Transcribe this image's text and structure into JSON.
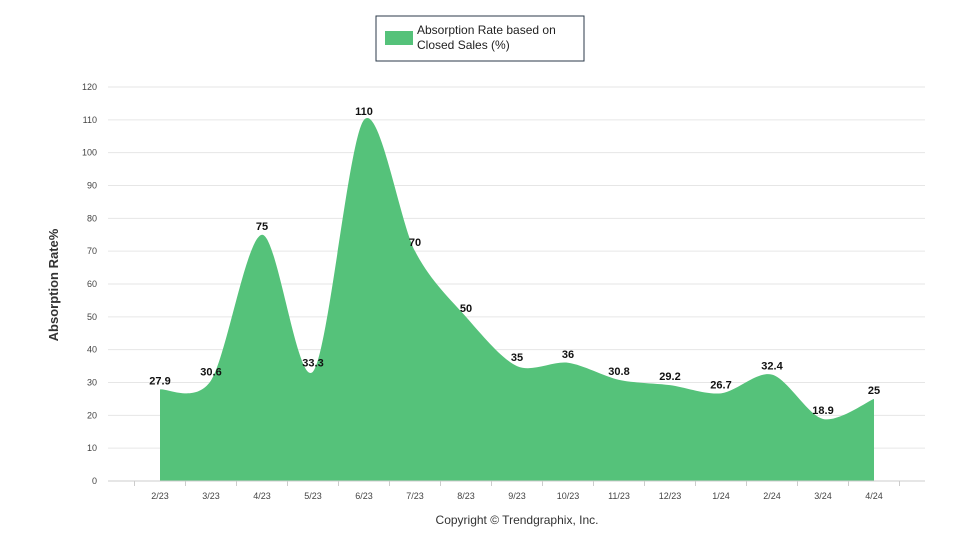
{
  "chart_data": {
    "type": "area",
    "title": "",
    "legend": {
      "label_line1": "Absorption Rate based on",
      "label_line2": "Closed Sales (%)",
      "placement": "top-center"
    },
    "xlabel": "",
    "ylabel": "Absorption Rate%",
    "ylim": [
      0,
      120
    ],
    "yticks": [
      0,
      10,
      20,
      30,
      40,
      50,
      60,
      70,
      80,
      90,
      100,
      110,
      120
    ],
    "grid": true,
    "categories": [
      "2/23",
      "3/23",
      "4/23",
      "5/23",
      "6/23",
      "7/23",
      "8/23",
      "9/23",
      "10/23",
      "11/23",
      "12/23",
      "1/24",
      "2/24",
      "3/24",
      "4/24"
    ],
    "series": [
      {
        "name": "Absorption Rate based on Closed Sales (%)",
        "color": "#55c27a",
        "values": [
          27.9,
          30.6,
          75,
          33.3,
          110,
          70,
          50,
          35,
          36,
          30.8,
          29.2,
          26.7,
          32.4,
          18.9,
          25
        ],
        "value_labels": [
          "27.9",
          "30.6",
          "75",
          "33.3",
          "110",
          "70",
          "50",
          "35",
          "36",
          "30.8",
          "29.2",
          "26.7",
          "32.4",
          "18.9",
          "25"
        ]
      }
    ],
    "credit": "Copyright © Trendgraphix, Inc."
  }
}
